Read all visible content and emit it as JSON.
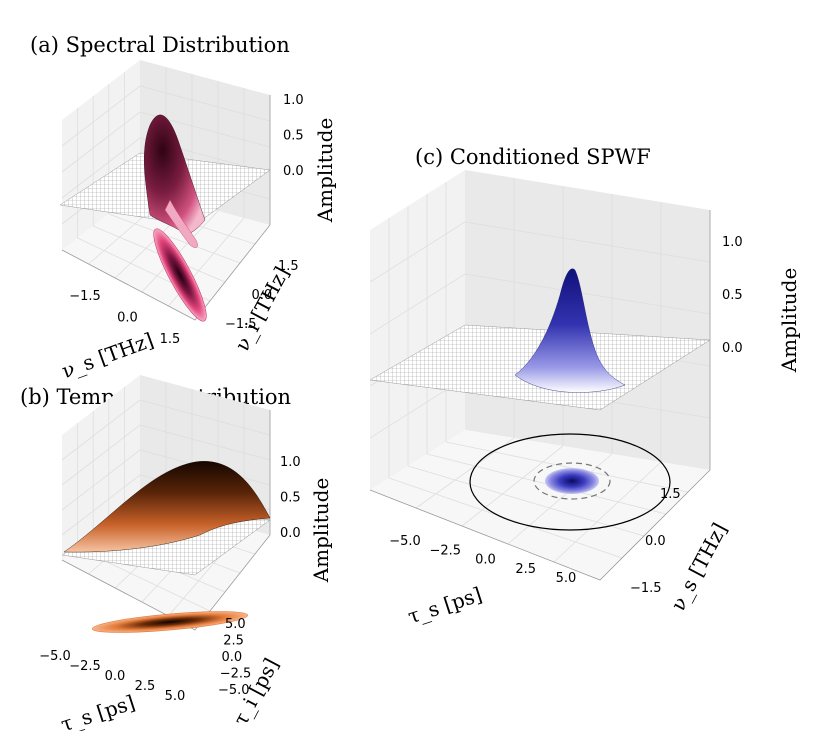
{
  "chart_data": [
    {
      "id": "a",
      "type": "surface3d",
      "title": "(a) Spectral Distribution",
      "xlabel": "ν_s [THz]",
      "ylabel": "ν_i [THz]",
      "zlabel": "Amplitude",
      "xticks": [
        "−1.5",
        "0.0",
        "1.5"
      ],
      "yticks": [
        "1.5",
        "0.0",
        "−1.5"
      ],
      "zticks": [
        "1.0",
        "0.5",
        "0.0"
      ],
      "xlim": [
        -2.5,
        2.5
      ],
      "ylim": [
        -2.5,
        2.5
      ],
      "zlim": [
        -1.0,
        1.1
      ],
      "colormap": "pink-red",
      "surface_color": "#5a0a25",
      "contour_color": "#e0457a"
    },
    {
      "id": "b",
      "type": "surface3d",
      "title": "(b) Temporal Distribution",
      "xlabel": "τ_s [ps]",
      "ylabel": "τ_i [ps]",
      "zlabel": "Amplitude",
      "xticks": [
        "−5.0",
        "−2.5",
        "0.0",
        "2.5",
        "5.0"
      ],
      "yticks": [
        "5.0",
        "2.5",
        "0.0",
        "−2.5",
        "−5.0"
      ],
      "zticks": [
        "1.0",
        "0.5",
        "0.0"
      ],
      "xlim": [
        -6,
        6
      ],
      "ylim": [
        -6,
        6
      ],
      "zlim": [
        -1.0,
        1.1
      ],
      "colormap": "orange",
      "surface_color": "#3a1505",
      "contour_color": "#f08a4a"
    },
    {
      "id": "c",
      "type": "surface3d",
      "title": "(c) Conditioned SPWF",
      "xlabel": "τ_s [ps]",
      "ylabel": "ν_s [THz]",
      "zlabel": "Amplitude",
      "xticks": [
        "−5.0",
        "−2.5",
        "0.0",
        "2.5",
        "5.0"
      ],
      "yticks": [
        "1.5",
        "0.0",
        "−1.5"
      ],
      "zticks": [
        "1.0",
        "0.5",
        "0.0"
      ],
      "xlim": [
        -6,
        6
      ],
      "ylim": [
        -2.5,
        2.5
      ],
      "zlim": [
        -1.0,
        1.1
      ],
      "colormap": "blue",
      "surface_color": "#1a1a8a",
      "contour_color": "#5a5ad0"
    }
  ]
}
